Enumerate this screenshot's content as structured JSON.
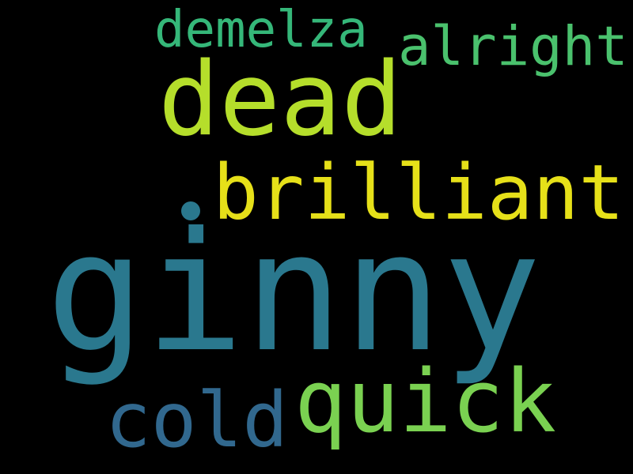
{
  "words": {
    "ginny": {
      "text": "ginny",
      "color": "#2a788e"
    },
    "brilliant": {
      "text": "brilliant",
      "color": "#e6e019"
    },
    "dead": {
      "text": "dead",
      "color": "#b5de2b"
    },
    "quick": {
      "text": "quick",
      "color": "#7ad151"
    },
    "cold": {
      "text": "cold",
      "color": "#31688e"
    },
    "demelza": {
      "text": "demelza",
      "color": "#35b779"
    },
    "alright": {
      "text": "alright",
      "color": "#4ac16d"
    }
  },
  "dot": {
    "color": "#2a788e"
  }
}
